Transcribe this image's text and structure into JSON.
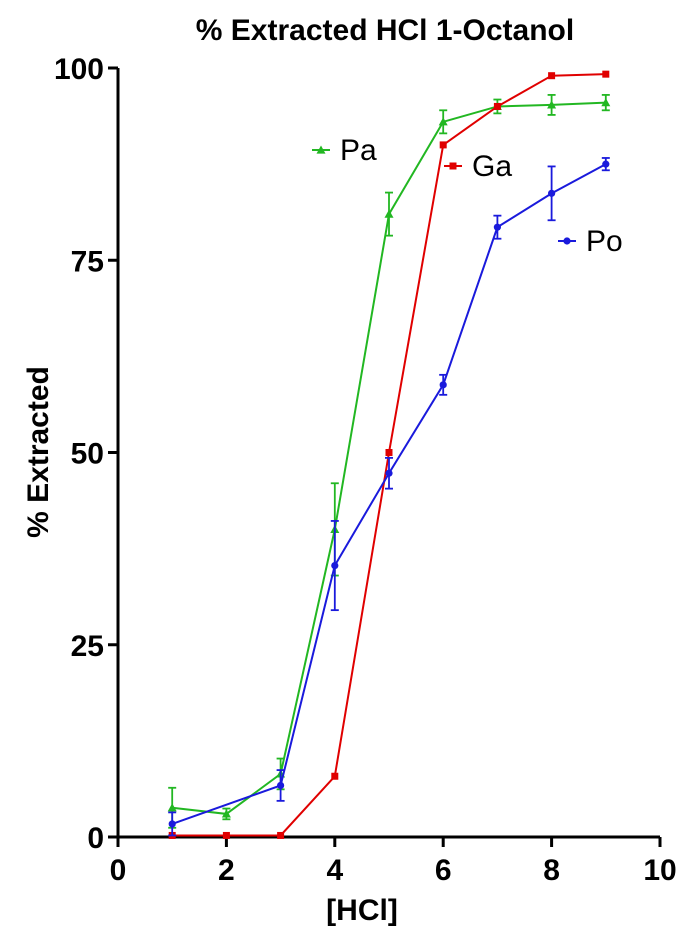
{
  "chart_data": {
    "type": "line",
    "title": "% Extracted HCl 1-Octanol",
    "xlabel": "[HCl]",
    "ylabel": "% Extracted",
    "xlim": [
      0,
      10
    ],
    "ylim": [
      0,
      100
    ],
    "xticks": [
      "0",
      "2",
      "4",
      "6",
      "8",
      "10"
    ],
    "yticks": [
      "0",
      "25",
      "50",
      "75",
      "100"
    ],
    "grid": false,
    "legend": "inline labels near line ends",
    "series": [
      {
        "name": "Pa",
        "color": "#22b722",
        "marker": "triangle",
        "x": [
          1,
          2,
          3,
          4,
          5,
          6,
          7,
          8,
          9
        ],
        "y": [
          3.8,
          3.0,
          8.2,
          40.0,
          81.0,
          93.0,
          95.0,
          95.2,
          95.5
        ],
        "err": [
          2.6,
          0.7,
          2.0,
          6.0,
          2.8,
          1.5,
          0.9,
          1.3,
          1.0
        ]
      },
      {
        "name": "Ga",
        "color": "#e00000",
        "marker": "square",
        "x": [
          1,
          2,
          3,
          4,
          5,
          6,
          7,
          8,
          9
        ],
        "y": [
          0.2,
          0.2,
          0.2,
          7.9,
          50.0,
          90.0,
          95.0,
          99.0,
          99.2
        ],
        "err": [
          0,
          0,
          0,
          0,
          0,
          0,
          0,
          0,
          0
        ]
      },
      {
        "name": "Po",
        "color": "#1a1adc",
        "marker": "circle",
        "x": [
          1,
          2,
          3,
          4,
          5,
          6,
          7,
          8,
          9
        ],
        "y": [
          1.7,
          null,
          6.7,
          35.3,
          47.3,
          58.8,
          79.3,
          83.7,
          87.5
        ],
        "err": [
          1.5,
          0,
          2.0,
          5.8,
          2.0,
          1.3,
          1.5,
          3.5,
          0.8
        ]
      }
    ],
    "legend_labels": [
      "Pa",
      "Ga",
      "Po"
    ]
  }
}
